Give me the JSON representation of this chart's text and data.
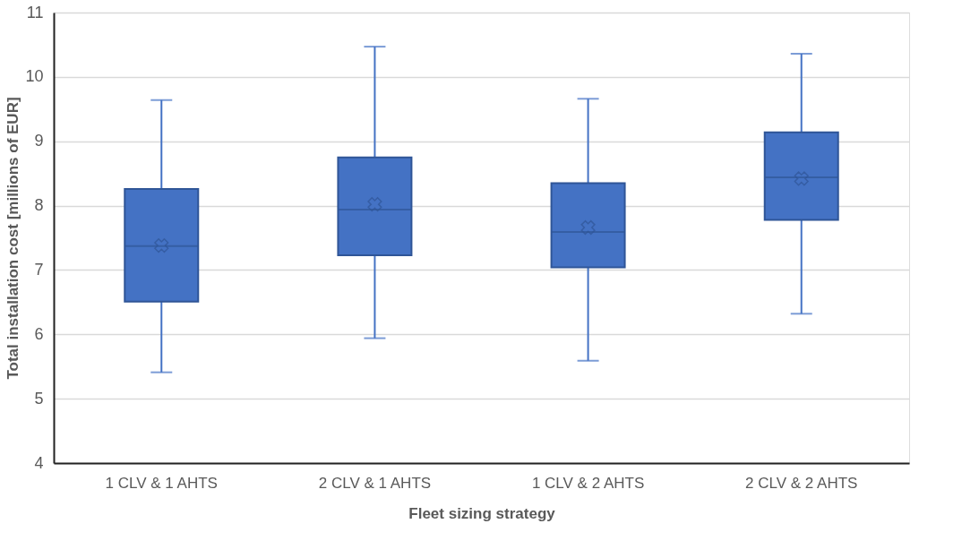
{
  "chart_data": {
    "type": "box",
    "xlabel": "Fleet sizing strategy",
    "ylabel": "Total installation cost [millions of EUR]",
    "categories": [
      "1 CLV & 1 AHTS",
      "2 CLV & 1 AHTS",
      "1 CLV & 2 AHTS",
      "2 CLV & 2 AHTS"
    ],
    "color": "#4472c4",
    "boxes": [
      {
        "low": 5.41,
        "q1": 6.51,
        "median": 7.37,
        "q3": 8.26,
        "high": 9.64,
        "mean": 7.38
      },
      {
        "low": 5.94,
        "q1": 7.23,
        "median": 7.94,
        "q3": 8.75,
        "high": 10.47,
        "mean": 8.02
      },
      {
        "low": 5.59,
        "q1": 7.04,
        "median": 7.59,
        "q3": 8.35,
        "high": 9.66,
        "mean": 7.66
      },
      {
        "low": 6.32,
        "q1": 7.78,
        "median": 8.44,
        "q3": 9.14,
        "high": 10.36,
        "mean": 8.42
      }
    ],
    "ylim": [
      4,
      11
    ],
    "yticks": [
      4,
      5,
      6,
      7,
      8,
      9,
      10,
      11
    ],
    "grid": "y"
  }
}
